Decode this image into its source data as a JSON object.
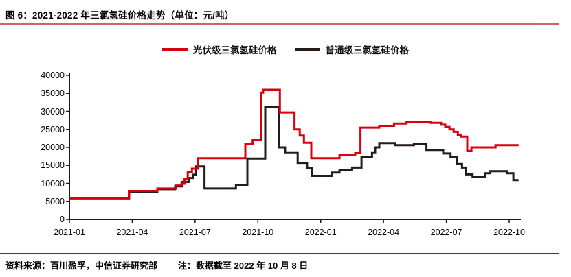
{
  "figure": {
    "title": "图 6：2021-2022 年三氯氢硅价格走势（单位：元/吨）",
    "source_note": "资料来源：百川盈孚，中信证券研究部",
    "data_note": "注：数据截至 2022 年 10 月 8 日"
  },
  "colors": {
    "pv_red": "#d7000f",
    "ordinary_black": "#251b17",
    "title_rule": "#c96767",
    "footer_rule": "#b40a0a",
    "axis": "#1a1a1a"
  },
  "chart_data": {
    "type": "line",
    "title": "2021-2022 年三氯氢硅价格走势",
    "unit": "元/吨",
    "grid": false,
    "legend_position": "top-center",
    "x_axis": {
      "tick_months": [
        0,
        3,
        6,
        9,
        12,
        15,
        18,
        21
      ],
      "tick_labels": [
        "2021-01",
        "2021-04",
        "2021-07",
        "2021-10",
        "2022-01",
        "2022-04",
        "2022-07",
        "2022-10"
      ],
      "range_months": [
        0,
        21.6
      ]
    },
    "y_axis": {
      "min": 0,
      "max": 40000,
      "tick_step": 5000,
      "tick_labels": [
        "0",
        "5000",
        "10000",
        "15000",
        "20000",
        "25000",
        "30000",
        "35000",
        "40000"
      ]
    },
    "series": [
      {
        "name": "光伏级三氯氢硅价格",
        "color_key": "pv_red",
        "points": [
          [
            0.0,
            6000
          ],
          [
            2.85,
            6000
          ],
          [
            2.85,
            7900
          ],
          [
            4.2,
            7900
          ],
          [
            4.2,
            8600
          ],
          [
            5.1,
            8600
          ],
          [
            5.1,
            9400
          ],
          [
            5.35,
            9400
          ],
          [
            5.35,
            9900
          ],
          [
            5.5,
            9900
          ],
          [
            5.5,
            11300
          ],
          [
            5.65,
            11300
          ],
          [
            5.65,
            13100
          ],
          [
            5.85,
            13100
          ],
          [
            5.85,
            14100
          ],
          [
            6.15,
            14100
          ],
          [
            6.15,
            17000
          ],
          [
            8.4,
            17000
          ],
          [
            8.4,
            21000
          ],
          [
            8.75,
            21000
          ],
          [
            8.75,
            22000
          ],
          [
            9.15,
            22000
          ],
          [
            9.15,
            35200
          ],
          [
            9.25,
            35200
          ],
          [
            9.25,
            36000
          ],
          [
            10.05,
            36000
          ],
          [
            10.05,
            29700
          ],
          [
            10.75,
            29700
          ],
          [
            10.75,
            25000
          ],
          [
            11.0,
            25000
          ],
          [
            11.0,
            23300
          ],
          [
            11.2,
            23300
          ],
          [
            11.2,
            21300
          ],
          [
            11.55,
            21300
          ],
          [
            11.55,
            17000
          ],
          [
            12.9,
            17000
          ],
          [
            12.9,
            18000
          ],
          [
            13.65,
            18000
          ],
          [
            13.65,
            18500
          ],
          [
            13.9,
            18500
          ],
          [
            13.9,
            25500
          ],
          [
            14.8,
            25500
          ],
          [
            14.8,
            26000
          ],
          [
            15.5,
            26000
          ],
          [
            15.5,
            26600
          ],
          [
            16.1,
            26600
          ],
          [
            16.1,
            27100
          ],
          [
            17.25,
            27100
          ],
          [
            17.25,
            26800
          ],
          [
            17.75,
            26800
          ],
          [
            17.75,
            26300
          ],
          [
            17.95,
            26300
          ],
          [
            17.95,
            25700
          ],
          [
            18.15,
            25700
          ],
          [
            18.15,
            25000
          ],
          [
            18.35,
            25000
          ],
          [
            18.35,
            24300
          ],
          [
            18.55,
            24300
          ],
          [
            18.55,
            23500
          ],
          [
            18.7,
            23500
          ],
          [
            18.7,
            23000
          ],
          [
            19.0,
            23000
          ],
          [
            19.0,
            19000
          ],
          [
            19.2,
            19000
          ],
          [
            19.2,
            20000
          ],
          [
            20.35,
            20000
          ],
          [
            20.35,
            20600
          ],
          [
            21.45,
            20600
          ]
        ]
      },
      {
        "name": "普通级三氯氢硅价格",
        "color_key": "ordinary_black",
        "points": [
          [
            0.0,
            5850
          ],
          [
            2.85,
            5850
          ],
          [
            2.85,
            7600
          ],
          [
            4.2,
            7600
          ],
          [
            4.2,
            8400
          ],
          [
            5.05,
            8400
          ],
          [
            5.05,
            9200
          ],
          [
            5.4,
            9200
          ],
          [
            5.4,
            10400
          ],
          [
            5.7,
            10400
          ],
          [
            5.7,
            11500
          ],
          [
            5.9,
            11500
          ],
          [
            5.9,
            12400
          ],
          [
            6.05,
            12400
          ],
          [
            6.05,
            14700
          ],
          [
            6.45,
            14700
          ],
          [
            6.45,
            8600
          ],
          [
            7.95,
            8600
          ],
          [
            7.95,
            9600
          ],
          [
            8.5,
            9600
          ],
          [
            8.5,
            16900
          ],
          [
            9.35,
            16900
          ],
          [
            9.35,
            31200
          ],
          [
            10.0,
            31200
          ],
          [
            10.0,
            20000
          ],
          [
            10.3,
            20000
          ],
          [
            10.3,
            18600
          ],
          [
            10.9,
            18600
          ],
          [
            10.9,
            15700
          ],
          [
            11.35,
            15700
          ],
          [
            11.35,
            14300
          ],
          [
            11.6,
            14300
          ],
          [
            11.6,
            12100
          ],
          [
            12.55,
            12100
          ],
          [
            12.55,
            13000
          ],
          [
            12.9,
            13000
          ],
          [
            12.9,
            13700
          ],
          [
            13.5,
            13700
          ],
          [
            13.5,
            14400
          ],
          [
            13.95,
            14400
          ],
          [
            13.95,
            17300
          ],
          [
            14.45,
            17300
          ],
          [
            14.45,
            18600
          ],
          [
            14.6,
            18600
          ],
          [
            14.6,
            20000
          ],
          [
            14.8,
            20000
          ],
          [
            14.8,
            21200
          ],
          [
            15.55,
            21200
          ],
          [
            15.55,
            20600
          ],
          [
            16.45,
            20600
          ],
          [
            16.45,
            21000
          ],
          [
            17.05,
            21000
          ],
          [
            17.05,
            19300
          ],
          [
            17.85,
            19300
          ],
          [
            17.85,
            18300
          ],
          [
            18.2,
            18300
          ],
          [
            18.2,
            17300
          ],
          [
            18.5,
            17300
          ],
          [
            18.5,
            15400
          ],
          [
            18.75,
            15400
          ],
          [
            18.75,
            14400
          ],
          [
            18.95,
            14400
          ],
          [
            18.95,
            12500
          ],
          [
            19.25,
            12500
          ],
          [
            19.25,
            11900
          ],
          [
            19.85,
            11900
          ],
          [
            19.85,
            12800
          ],
          [
            20.1,
            12800
          ],
          [
            20.1,
            13400
          ],
          [
            20.9,
            13400
          ],
          [
            20.9,
            12800
          ],
          [
            21.2,
            12800
          ],
          [
            21.2,
            10900
          ],
          [
            21.45,
            10900
          ]
        ]
      }
    ]
  }
}
